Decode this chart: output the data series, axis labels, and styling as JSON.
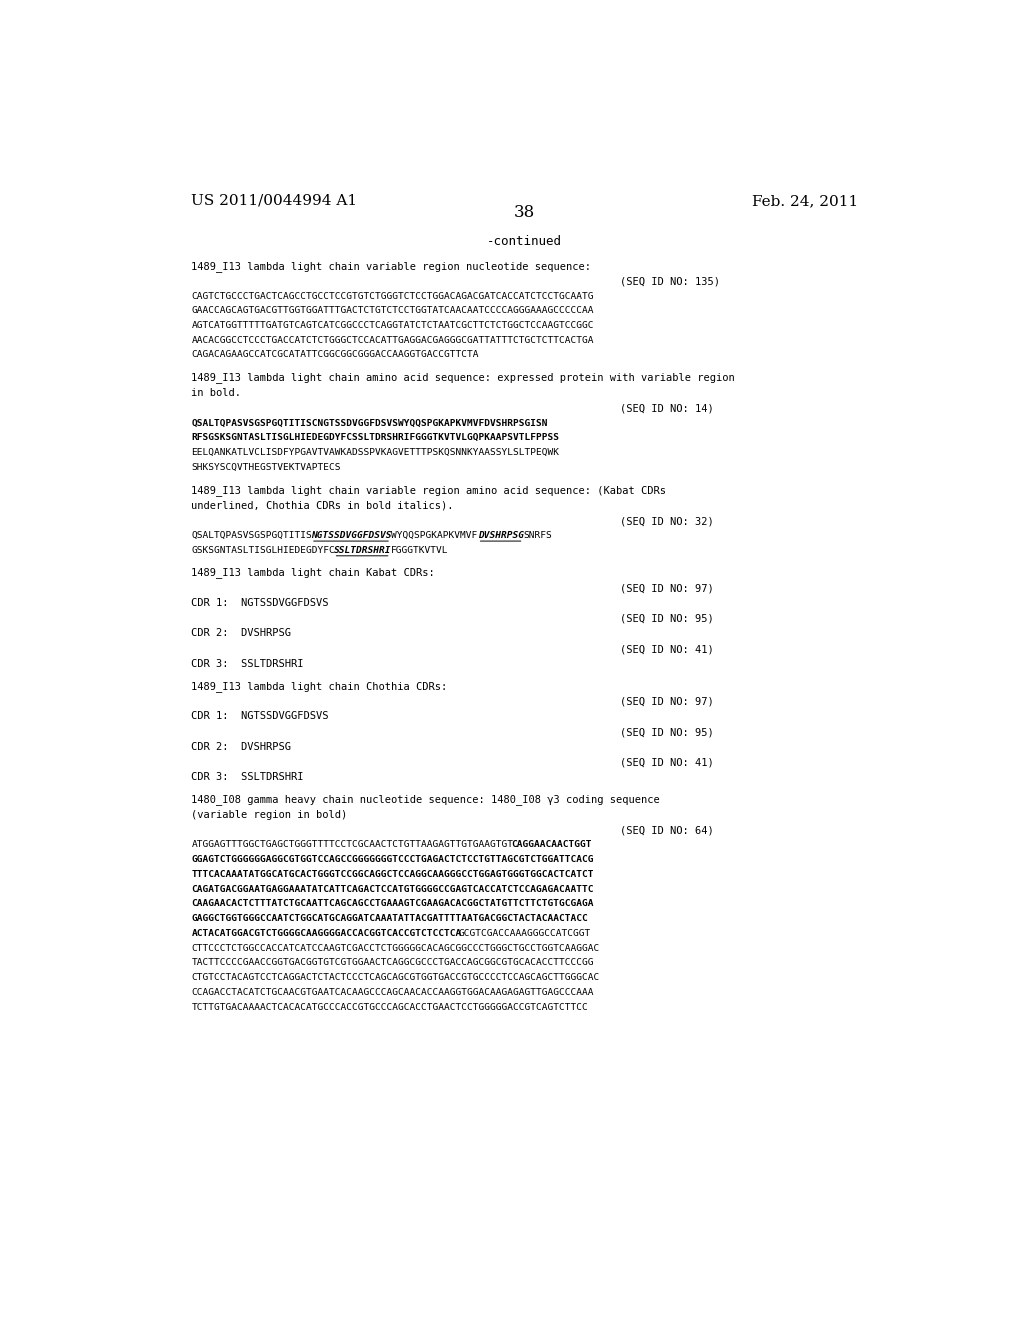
{
  "page_number": "38",
  "left_header": "US 2011/0044994 A1",
  "right_header": "Feb. 24, 2011",
  "continued_label": "-continued",
  "background_color": "#ffffff",
  "text_color": "#000000",
  "font_size_header": 11,
  "font_size_page_num": 12
}
